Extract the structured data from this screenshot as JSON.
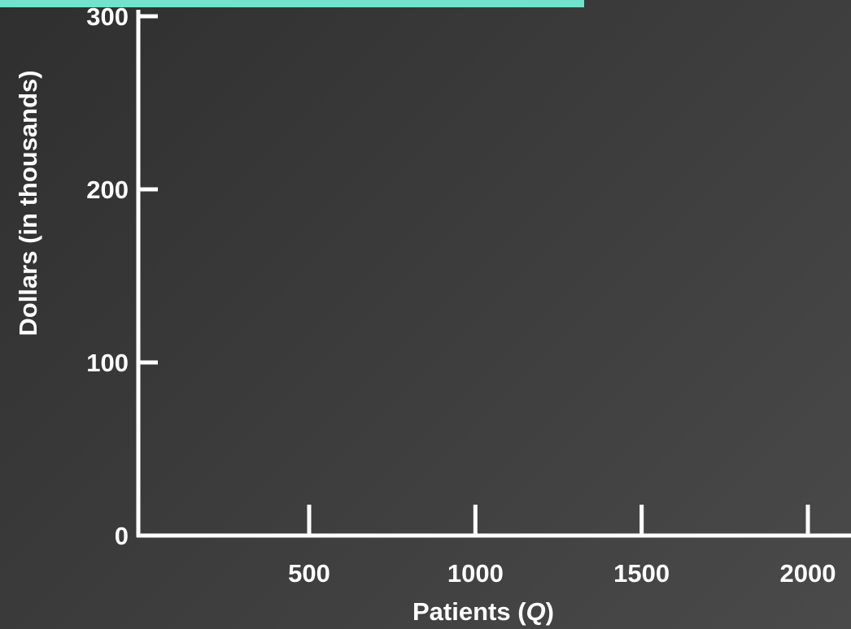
{
  "colors": {
    "background": "#3b3b3b",
    "axis": "#ffffff",
    "banner": "#6fe3cc",
    "text": "#ffffff"
  },
  "chart_data": {
    "type": "line",
    "title": "",
    "xlabel": "Patients (Q)",
    "xlabel_parts": {
      "before": "Patients (",
      "italic": "Q",
      "after": ")"
    },
    "ylabel": "Dollars (in thousands)",
    "x_ticks": [
      "500",
      "1000",
      "1500",
      "2000"
    ],
    "x_tick_values": [
      500,
      1000,
      1500,
      2000
    ],
    "y_ticks": [
      "0",
      "100",
      "200",
      "300"
    ],
    "y_tick_values": [
      0,
      100,
      200,
      300
    ],
    "xlim": [
      0,
      2200
    ],
    "ylim": [
      0,
      300
    ],
    "series": [],
    "grid": false
  }
}
